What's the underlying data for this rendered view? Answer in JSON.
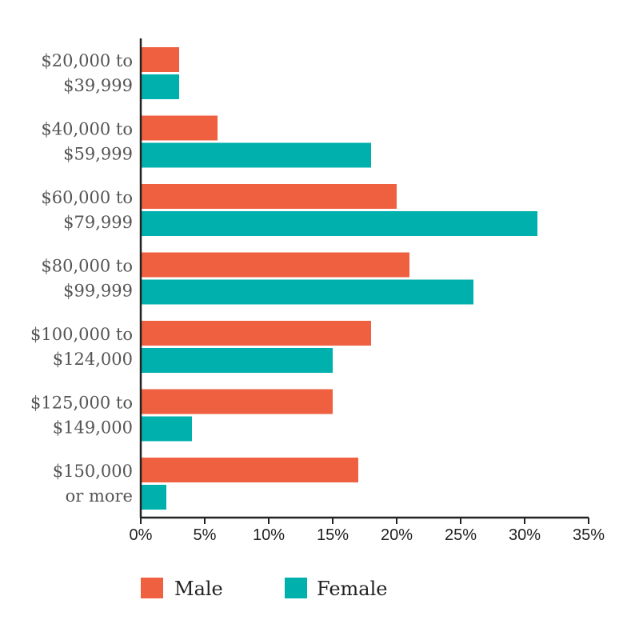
{
  "chart_data": {
    "type": "bar",
    "orientation": "horizontal",
    "categories": [
      [
        "$20,000 to",
        "$39,999"
      ],
      [
        "$40,000 to",
        "$59,999"
      ],
      [
        "$60,000 to",
        "$79,999"
      ],
      [
        "$80,000 to",
        "$99,999"
      ],
      [
        "$100,000 to",
        "$124,000"
      ],
      [
        "$125,000 to",
        "$149,000"
      ],
      [
        "$150,000",
        "or more"
      ]
    ],
    "series": [
      {
        "name": "Male",
        "color": "#EE6040",
        "values": [
          3,
          6,
          20,
          21,
          18,
          15,
          17
        ]
      },
      {
        "name": "Female",
        "color": "#00B0AC",
        "values": [
          3,
          18,
          31,
          26,
          15,
          4,
          2
        ]
      }
    ],
    "xticks": [
      "0%",
      "5%",
      "10%",
      "15%",
      "20%",
      "25%",
      "30%",
      "35%"
    ],
    "xlim": [
      0,
      35
    ],
    "unit": "%",
    "grid": false,
    "legend_position": "bottom"
  }
}
